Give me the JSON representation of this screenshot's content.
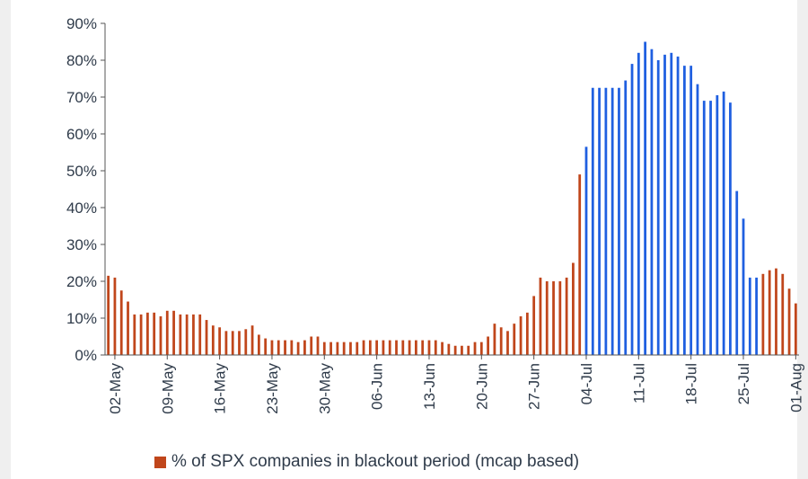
{
  "chart_data": {
    "type": "bar",
    "xlabel": "",
    "ylabel": "",
    "ylim": [
      0,
      90
    ],
    "y_ticks": [
      "0%",
      "10%",
      "20%",
      "30%",
      "40%",
      "50%",
      "60%",
      "70%",
      "80%",
      "90%"
    ],
    "x_tick_labels": [
      "02-May",
      "09-May",
      "16-May",
      "23-May",
      "30-May",
      "06-Jun",
      "13-Jun",
      "20-Jun",
      "27-Jun",
      "04-Jul",
      "11-Jul",
      "18-Jul",
      "25-Jul",
      "01-Aug"
    ],
    "x_tick_indices": [
      1,
      9,
      17,
      25,
      33,
      41,
      49,
      57,
      65,
      73,
      81,
      89,
      97,
      105
    ],
    "grid": false,
    "legend_position": "bottom",
    "series": [
      {
        "name": "% of SPX companies in blackout period (mcap based)",
        "color": "#c0461b",
        "highlight_color": "#1f5fe0",
        "highlight_range": [
          73,
          100
        ],
        "values": [
          21.5,
          21,
          17.5,
          14.5,
          11,
          11,
          11.5,
          11.5,
          10.5,
          12,
          12,
          11,
          11,
          11,
          11,
          9.5,
          8,
          7.5,
          6.5,
          6.5,
          6.5,
          7,
          8,
          5.5,
          4.5,
          4,
          4,
          4,
          4,
          3.5,
          4,
          5,
          5,
          3.5,
          3.5,
          3.5,
          3.5,
          3.5,
          3.5,
          4,
          4,
          4,
          4,
          4,
          4,
          4,
          4,
          4,
          4,
          4,
          4,
          3.5,
          3,
          2.5,
          2.5,
          2.5,
          3.5,
          3.5,
          5,
          8.5,
          7.5,
          6.5,
          8.5,
          10.5,
          11.5,
          16,
          21,
          20,
          20,
          20,
          21,
          25,
          49,
          56.5,
          72.5,
          72.5,
          72.5,
          72.5,
          72.5,
          74.5,
          79,
          82,
          85,
          83,
          80,
          81.5,
          82,
          81,
          78.5,
          78.5,
          73.5,
          69,
          69,
          70.5,
          71.5,
          68.5,
          44.5,
          37,
          21,
          21,
          22,
          23,
          23.5,
          22,
          18,
          14
        ]
      }
    ]
  }
}
